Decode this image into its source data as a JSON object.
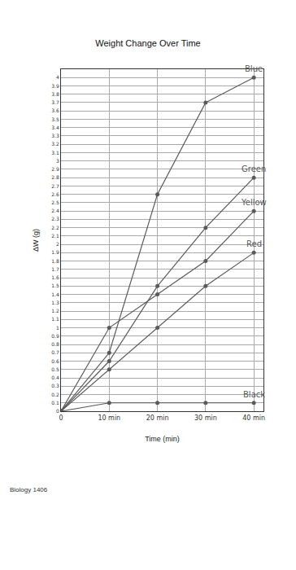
{
  "chart_data": {
    "type": "line",
    "title": "Weight Change Over Time",
    "x_label": "Time (min)",
    "y_label": "ΔW (g)",
    "x": [
      0,
      10,
      20,
      30,
      40
    ],
    "series": [
      {
        "name": "Blue",
        "color": "#5a5a5a",
        "values": [
          0,
          0.7,
          2.6,
          3.7,
          4.0
        ]
      },
      {
        "name": "Green",
        "color": "#5a5a5a",
        "values": [
          0,
          0.6,
          1.5,
          2.2,
          2.8
        ]
      },
      {
        "name": "Yellow",
        "color": "#5a5a5a",
        "values": [
          0,
          1.0,
          1.4,
          1.8,
          2.4
        ]
      },
      {
        "name": "Red",
        "color": "#5a5a5a",
        "values": [
          0,
          0.5,
          1.0,
          1.5,
          1.9
        ]
      },
      {
        "name": "Black",
        "color": "#5a5a5a",
        "values": [
          0,
          0.1,
          0.1,
          0.1,
          0.1
        ]
      }
    ],
    "xlim": [
      0,
      42
    ],
    "xticks": [
      0,
      {
        "value": 10,
        "label": "10 min"
      },
      {
        "value": 20,
        "label": "20 min"
      },
      {
        "value": 30,
        "label": "30 min"
      },
      {
        "value": 40,
        "label": "40 min"
      }
    ],
    "ylim": [
      0,
      4.1
    ],
    "yticks": [
      0,
      0.1,
      0.2,
      0.3,
      0.4,
      0.5,
      0.6,
      0.7,
      0.8,
      0.9,
      1.0,
      1.1,
      1.2,
      1.3,
      1.4,
      1.5,
      1.6,
      1.7,
      1.8,
      1.9,
      2.0,
      2.1,
      2.2,
      2.3,
      2.4,
      2.5,
      2.6,
      2.7,
      2.8,
      2.9,
      3.0,
      3.1,
      3.2,
      3.3,
      3.4,
      3.5,
      3.6,
      3.7,
      3.8,
      3.9,
      4.0
    ],
    "grid": true,
    "marker": "circle",
    "footer": "Biology 1406"
  }
}
